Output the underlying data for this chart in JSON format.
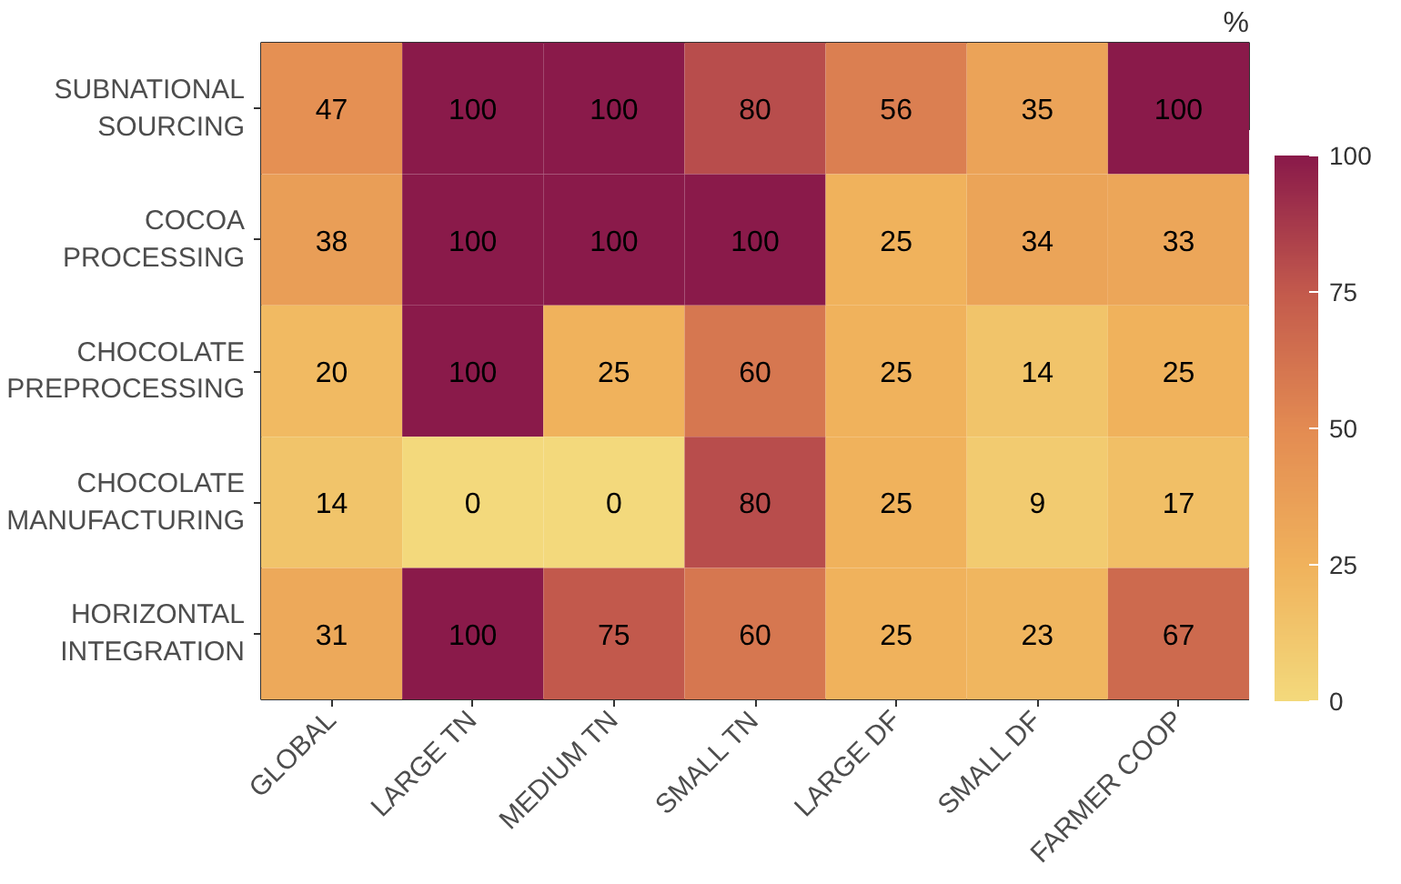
{
  "chart_data": {
    "type": "heatmap",
    "categories": [
      "GLOBAL",
      "LARGE TN",
      "MEDIUM TN",
      "SMALL TN",
      "LARGE DF",
      "SMALL DF",
      "FARMER COOP"
    ],
    "y_categories": [
      "SUBNATIONAL\nSOURCING",
      "COCOA\nPROCESSING",
      "CHOCOLATE\nPREPROCESSING",
      "CHOCOLATE\nMANUFACTURING",
      "HORIZONTAL\nINTEGRATION"
    ],
    "cells": [
      [
        47,
        100,
        100,
        80,
        56,
        35,
        100
      ],
      [
        38,
        100,
        100,
        100,
        25,
        34,
        33
      ],
      [
        20,
        100,
        25,
        60,
        25,
        14,
        25
      ],
      [
        14,
        0,
        0,
        80,
        25,
        9,
        17
      ],
      [
        31,
        100,
        75,
        60,
        25,
        23,
        67
      ]
    ],
    "data_labels": true,
    "clabel": "%",
    "clim": [
      0,
      100
    ],
    "cticks": [
      0,
      25,
      50,
      75,
      100
    ],
    "grid": false
  }
}
